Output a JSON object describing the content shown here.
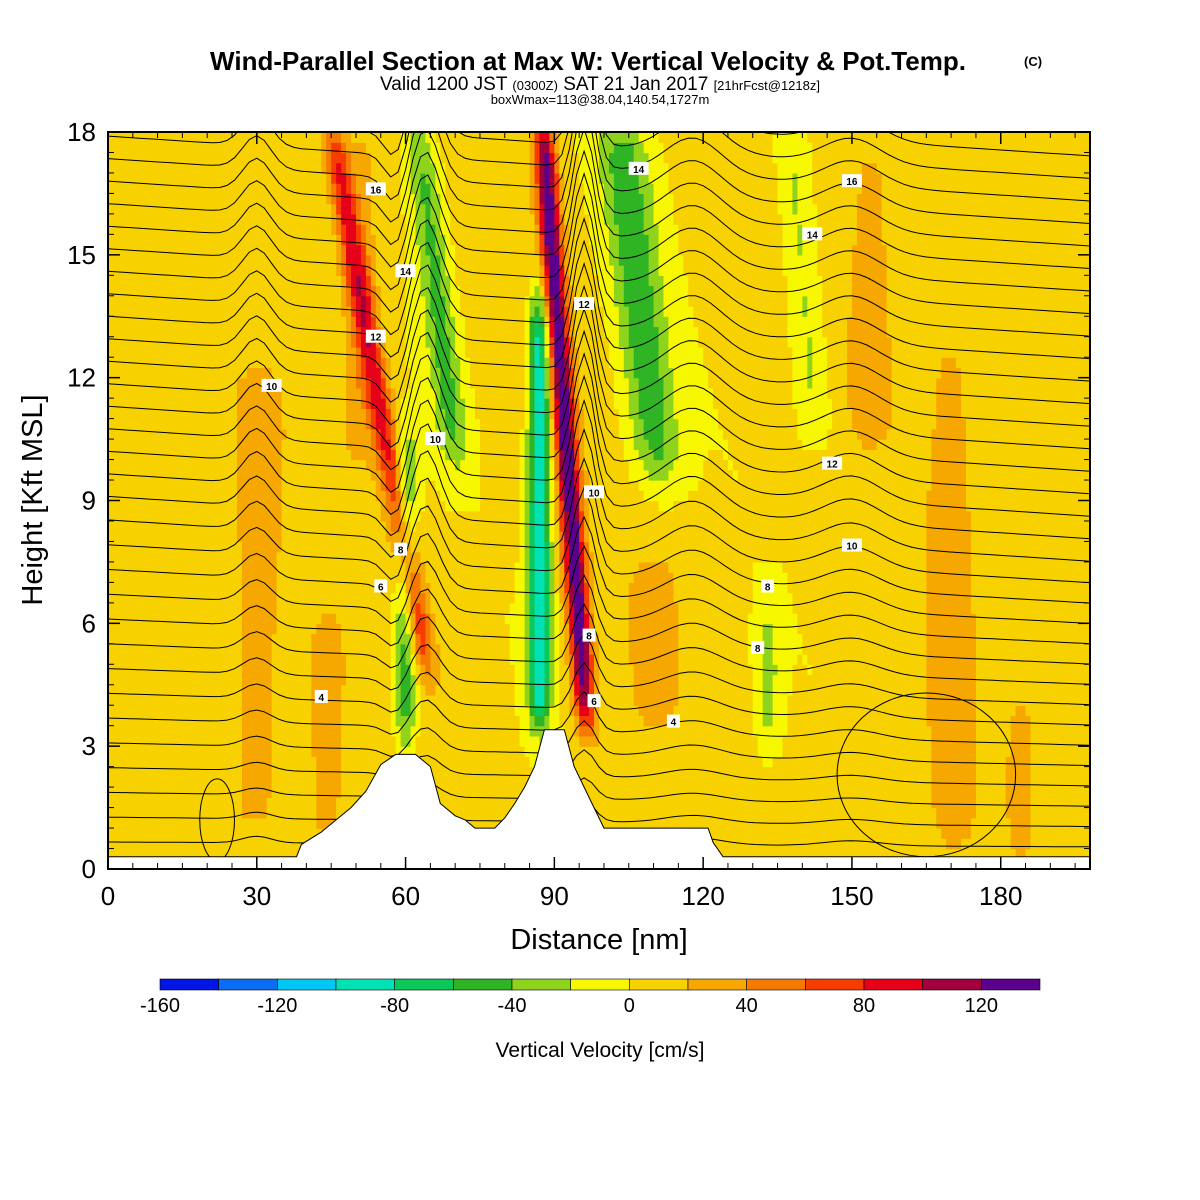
{
  "chart_data": {
    "type": "heatmap",
    "title": "Wind-Parallel Section at Max W: Vertical Velocity & Pot.Temp.",
    "title_mark": "(C)",
    "subtitle": {
      "prefix": "Valid 1200 JST",
      "utc": "(0300Z)",
      "date": "SAT 21 Jan 2017",
      "fcst": "[21hrFcst@1218z]"
    },
    "box_info": "boxWmax=113@38.04,140.54,1727m",
    "xlabel": "Distance [nm]",
    "ylabel": "Height [Kft MSL]",
    "xlim": [
      0,
      198
    ],
    "ylim": [
      0,
      18
    ],
    "x_ticks": [
      0,
      30,
      60,
      90,
      120,
      150,
      180
    ],
    "y_ticks": [
      0,
      3,
      6,
      9,
      12,
      15,
      18
    ],
    "colorbar": {
      "label": "Vertical Velocity [cm/s]",
      "range": [
        -160,
        140
      ],
      "tick_values": [
        -160,
        -120,
        -80,
        -40,
        0,
        40,
        80,
        120
      ],
      "tick_labels": [
        "-160",
        "-120",
        "-80",
        "-40",
        "0",
        "40",
        "80",
        "120"
      ],
      "bin_width": 20,
      "colors": [
        "#0016e6",
        "#0b6ef2",
        "#00c8f5",
        "#00e2b4",
        "#0bc85a",
        "#2fb424",
        "#8fd41c",
        "#f7f700",
        "#f7d200",
        "#f7a800",
        "#f77a00",
        "#f73c00",
        "#e6001a",
        "#a0003c",
        "#5a008c"
      ]
    },
    "terrain_kft": [
      [
        0,
        0.3
      ],
      [
        38,
        0.3
      ],
      [
        39,
        0.6
      ],
      [
        43,
        0.9
      ],
      [
        46,
        1.2
      ],
      [
        49,
        1.5
      ],
      [
        52,
        1.9
      ],
      [
        55,
        2.55
      ],
      [
        58,
        2.8
      ],
      [
        62,
        2.8
      ],
      [
        65,
        2.5
      ],
      [
        67,
        1.6
      ],
      [
        70,
        1.3
      ],
      [
        72,
        1.2
      ],
      [
        74,
        1.0
      ],
      [
        78,
        1.0
      ],
      [
        80,
        1.25
      ],
      [
        82,
        1.6
      ],
      [
        84,
        2.0
      ],
      [
        86,
        2.5
      ],
      [
        88,
        3.4
      ],
      [
        92,
        3.4
      ],
      [
        94,
        2.5
      ],
      [
        96,
        2.0
      ],
      [
        98,
        1.5
      ],
      [
        100,
        1.0
      ],
      [
        121,
        1.0
      ],
      [
        122,
        0.65
      ],
      [
        124,
        0.3
      ],
      [
        198,
        0.3
      ]
    ],
    "updrafts": [
      {
        "x": 64,
        "h1": 5.0,
        "h2": 18.2,
        "peak": 78,
        "tilt": -1.45,
        "w": 2.6
      },
      {
        "x": 96.5,
        "h1": 3.5,
        "h2": 18.2,
        "peak": 132,
        "tilt": -0.6,
        "w": 2.2
      },
      {
        "x": 30,
        "h1": 1.0,
        "h2": 12.0,
        "peak": 28,
        "tilt": 0.0,
        "w": 5.0
      },
      {
        "x": 44,
        "h1": 0.5,
        "h2": 6.0,
        "peak": 30,
        "tilt": 0.0,
        "w": 3.5
      },
      {
        "x": 51,
        "h1": 10.0,
        "h2": 18.0,
        "peak": 24,
        "tilt": 0.0,
        "w": 4.0
      },
      {
        "x": 170,
        "h1": 0.5,
        "h2": 13.0,
        "peak": 24,
        "tilt": 0.0,
        "w": 5.0
      },
      {
        "x": 154,
        "h1": 10.5,
        "h2": 18.0,
        "peak": 22,
        "tilt": 0.0,
        "w": 5.0
      },
      {
        "x": 110,
        "h1": 3.5,
        "h2": 7.5,
        "peak": 22,
        "tilt": 0.0,
        "w": 5.0
      },
      {
        "x": 184,
        "h1": 0.5,
        "h2": 4.0,
        "peak": 24,
        "tilt": 0.0,
        "w": 2.5
      }
    ],
    "downdrafts": [
      {
        "x": 60,
        "h1": 3.0,
        "h2": 10.5,
        "peak": -62,
        "tilt": 0.0,
        "w": 2.2
      },
      {
        "x": 70,
        "h1": 10.0,
        "h2": 18.2,
        "peak": -50,
        "tilt": -0.9,
        "w": 3.2
      },
      {
        "x": 87,
        "h1": 3.6,
        "h2": 14.0,
        "peak": -105,
        "tilt": 0.0,
        "w": 2.2
      },
      {
        "x": 111,
        "h1": 9.5,
        "h2": 18.2,
        "peak": -56,
        "tilt": -0.9,
        "w": 5.0
      },
      {
        "x": 143,
        "h1": 10.5,
        "h2": 18.2,
        "peak": -32,
        "tilt": -0.75,
        "w": 3.5
      },
      {
        "x": 133,
        "h1": 3.0,
        "h2": 6.2,
        "peak": -32,
        "tilt": 0.0,
        "w": 2.5
      }
    ],
    "contour_labels": [
      {
        "text": "16",
        "x": 54,
        "y": 16.6
      },
      {
        "text": "14",
        "x": 60,
        "y": 14.6
      },
      {
        "text": "12",
        "x": 54,
        "y": 13.0
      },
      {
        "text": "10",
        "x": 33,
        "y": 11.8
      },
      {
        "text": "10",
        "x": 66,
        "y": 10.5
      },
      {
        "text": "8",
        "x": 59,
        "y": 7.8
      },
      {
        "text": "6",
        "x": 55,
        "y": 6.9
      },
      {
        "text": "4",
        "x": 43,
        "y": 4.2
      },
      {
        "text": "12",
        "x": 96,
        "y": 13.8
      },
      {
        "text": "10",
        "x": 98,
        "y": 9.2
      },
      {
        "text": "8",
        "x": 97,
        "y": 5.7
      },
      {
        "text": "6",
        "x": 98,
        "y": 4.1
      },
      {
        "text": "14",
        "x": 107,
        "y": 17.1
      },
      {
        "text": "16",
        "x": 150,
        "y": 16.8
      },
      {
        "text": "14",
        "x": 142,
        "y": 15.5
      },
      {
        "text": "12",
        "x": 146,
        "y": 9.9
      },
      {
        "text": "10",
        "x": 150,
        "y": 7.9
      },
      {
        "text": "8",
        "x": 133,
        "y": 6.9
      },
      {
        "text": "8",
        "x": 131,
        "y": 5.4
      },
      {
        "text": "4",
        "x": 114,
        "y": 3.6
      }
    ]
  }
}
